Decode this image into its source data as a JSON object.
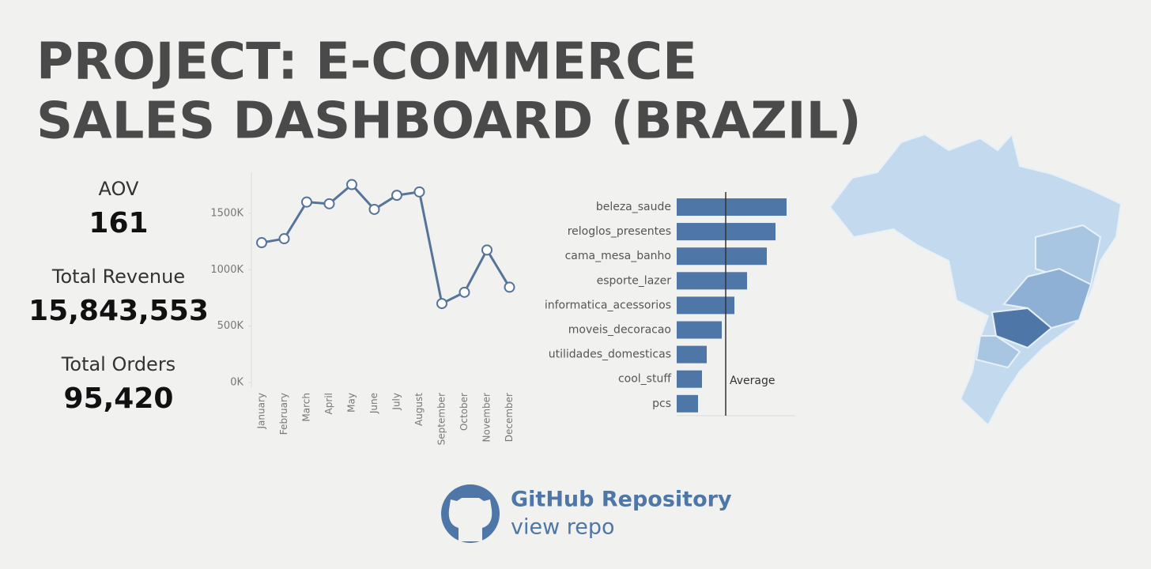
{
  "header": {
    "title_lines": [
      "PROJECT: E-COMMERCE",
      "SALES DASHBOARD (BRAZIL)"
    ]
  },
  "kpis": [
    {
      "label": "AOV",
      "value": "161"
    },
    {
      "label": "Total Revenue",
      "value": "15,843,553"
    },
    {
      "label": "Total Orders",
      "value": "95,420"
    }
  ],
  "chart_data": [
    {
      "type": "line",
      "color": "#56749a",
      "categories": [
        "January",
        "February",
        "March",
        "April",
        "May",
        "June",
        "July",
        "August",
        "September",
        "October",
        "November",
        "December"
      ],
      "values": [
        1240000,
        1275000,
        1600000,
        1585000,
        1755000,
        1535000,
        1660000,
        1690000,
        700000,
        800000,
        1175000,
        845000
      ],
      "ylim": [
        0,
        1850000
      ],
      "yticks": [
        {
          "value": 0,
          "label": "0K"
        },
        {
          "value": 500000,
          "label": "500K"
        },
        {
          "value": 1000000,
          "label": "1000K"
        },
        {
          "value": 1500000,
          "label": "1500K"
        }
      ]
    },
    {
      "type": "hbar",
      "color": "#4e76a6",
      "categories": [
        "beleza_saude",
        "reloglos_presentes",
        "cama_mesa_banho",
        "esporte_lazer",
        "informatica_acessorios",
        "moveis_decoracao",
        "utilidades_domesticas",
        "cool_stuff",
        "pcs"
      ],
      "values": [
        1390000,
        1250000,
        1140000,
        890000,
        730000,
        570000,
        380000,
        320000,
        270000
      ],
      "xlim": [
        0,
        1500000
      ],
      "reference_line": {
        "label": "Average",
        "value": 620000
      }
    }
  ],
  "link": {
    "title": "GitHub Repository",
    "subtitle": "view repo"
  }
}
